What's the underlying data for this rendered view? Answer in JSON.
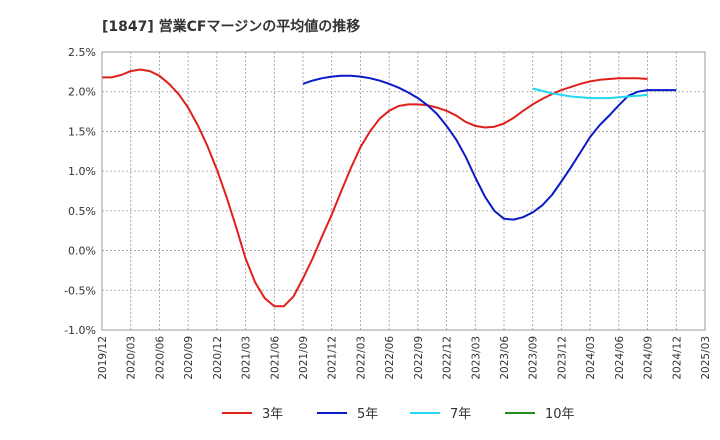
{
  "chart_data": {
    "type": "line",
    "title": "[1847]  営業CFマージンの平均値の推移",
    "xlabel": "",
    "ylabel": "",
    "ylim": [
      -1.0,
      2.5
    ],
    "y_ticks": [
      2.5,
      2.0,
      1.5,
      1.0,
      0.5,
      0.0,
      -0.5,
      -1.0
    ],
    "y_tick_labels": [
      "2.5%",
      "2.0%",
      "1.5%",
      "1.0%",
      "0.5%",
      "0.0%",
      "-0.5%",
      "-1.0%"
    ],
    "x_tick_labels": [
      "2019/12",
      "2020/03",
      "2020/06",
      "2020/09",
      "2020/12",
      "2021/03",
      "2021/06",
      "2021/09",
      "2021/12",
      "2022/03",
      "2022/06",
      "2022/09",
      "2022/12",
      "2023/03",
      "2023/06",
      "2023/09",
      "2023/12",
      "2024/03",
      "2024/06",
      "2024/09",
      "2024/12",
      "2025/03"
    ],
    "grid": true,
    "legend_position": "bottom",
    "series": [
      {
        "name": "3年",
        "color": "#e0201c",
        "x": [
          "2019/12",
          "2020/01",
          "2020/02",
          "2020/03",
          "2020/04",
          "2020/05",
          "2020/06",
          "2020/07",
          "2020/08",
          "2020/09",
          "2020/10",
          "2020/11",
          "2020/12",
          "2021/01",
          "2021/02",
          "2021/03",
          "2021/04",
          "2021/05",
          "2021/06",
          "2021/07",
          "2021/08",
          "2021/09",
          "2021/10",
          "2021/11",
          "2021/12",
          "2022/01",
          "2022/02",
          "2022/03",
          "2022/04",
          "2022/05",
          "2022/06",
          "2022/07",
          "2022/08",
          "2022/09",
          "2022/10",
          "2022/11",
          "2022/12",
          "2023/01",
          "2023/02",
          "2023/03",
          "2023/04",
          "2023/05",
          "2023/06",
          "2023/07",
          "2023/08",
          "2023/09",
          "2023/10",
          "2023/11",
          "2023/12",
          "2024/01",
          "2024/02",
          "2024/03",
          "2024/04",
          "2024/05",
          "2024/06",
          "2024/07",
          "2024/08",
          "2024/09"
        ],
        "values": [
          2.18,
          2.18,
          2.21,
          2.26,
          2.28,
          2.26,
          2.2,
          2.1,
          1.97,
          1.8,
          1.58,
          1.32,
          1.02,
          0.68,
          0.3,
          -0.1,
          -0.4,
          -0.6,
          -0.7,
          -0.7,
          -0.58,
          -0.35,
          -0.1,
          0.18,
          0.45,
          0.75,
          1.04,
          1.3,
          1.5,
          1.66,
          1.76,
          1.82,
          1.84,
          1.84,
          1.83,
          1.8,
          1.76,
          1.7,
          1.62,
          1.57,
          1.55,
          1.56,
          1.6,
          1.67,
          1.76,
          1.84,
          1.91,
          1.97,
          2.02,
          2.06,
          2.1,
          2.13,
          2.15,
          2.16,
          2.17,
          2.17,
          2.17,
          2.16
        ]
      },
      {
        "name": "5年",
        "color": "#0a1bc5",
        "x": [
          "2021/09",
          "2021/10",
          "2021/11",
          "2021/12",
          "2022/01",
          "2022/02",
          "2022/03",
          "2022/04",
          "2022/05",
          "2022/06",
          "2022/07",
          "2022/08",
          "2022/09",
          "2022/10",
          "2022/11",
          "2022/12",
          "2023/01",
          "2023/02",
          "2023/03",
          "2023/04",
          "2023/05",
          "2023/06",
          "2023/07",
          "2023/08",
          "2023/09",
          "2023/10",
          "2023/11",
          "2023/12",
          "2024/01",
          "2024/02",
          "2024/03",
          "2024/04",
          "2024/05",
          "2024/06",
          "2024/07",
          "2024/08",
          "2024/09",
          "2024/10",
          "2024/11",
          "2024/12"
        ],
        "values": [
          2.1,
          2.14,
          2.17,
          2.19,
          2.2,
          2.2,
          2.19,
          2.17,
          2.14,
          2.1,
          2.05,
          1.99,
          1.92,
          1.83,
          1.72,
          1.57,
          1.4,
          1.18,
          0.92,
          0.68,
          0.5,
          0.4,
          0.39,
          0.42,
          0.48,
          0.57,
          0.7,
          0.87,
          1.05,
          1.24,
          1.43,
          1.58,
          1.7,
          1.83,
          1.95,
          2.0,
          2.02,
          2.02,
          2.02,
          2.02
        ]
      },
      {
        "name": "7年",
        "color": "#22d8ee",
        "x": [
          "2023/09",
          "2023/10",
          "2023/11",
          "2023/12",
          "2024/01",
          "2024/02",
          "2024/03",
          "2024/04",
          "2024/05",
          "2024/06",
          "2024/07",
          "2024/08",
          "2024/09"
        ],
        "values": [
          2.04,
          2.01,
          1.98,
          1.96,
          1.94,
          1.93,
          1.92,
          1.92,
          1.92,
          1.93,
          1.94,
          1.95,
          1.96
        ]
      },
      {
        "name": "10年",
        "color": "#1e8c1e",
        "x": [],
        "values": []
      }
    ]
  }
}
